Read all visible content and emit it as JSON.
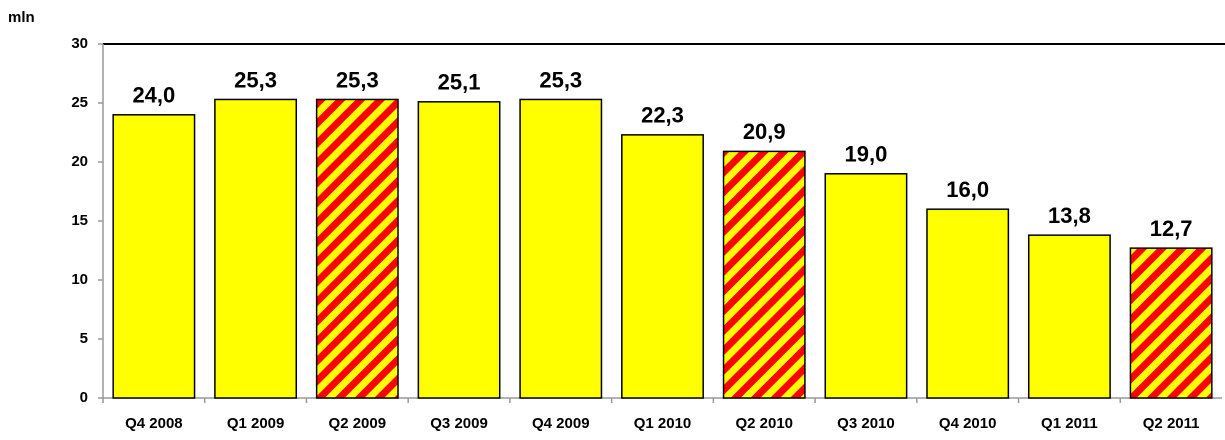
{
  "chart_data": {
    "type": "bar",
    "y_axis_label": "mln",
    "categories": [
      "Q4 2008",
      "Q1 2009",
      "Q2 2009",
      "Q3 2009",
      "Q4 2009",
      "Q1 2010",
      "Q2 2010",
      "Q3 2010",
      "Q4 2010",
      "Q1 2011",
      "Q2 2011"
    ],
    "values": [
      24.0,
      25.3,
      25.3,
      25.1,
      25.3,
      22.3,
      20.9,
      19.0,
      16.0,
      13.8,
      12.7
    ],
    "value_labels": [
      "24,0",
      "25,3",
      "25,3",
      "25,1",
      "25,3",
      "22,3",
      "20,9",
      "19,0",
      "16,0",
      "13,8",
      "12,7"
    ],
    "bar_styles": [
      "solid",
      "solid",
      "hatched",
      "solid",
      "solid",
      "solid",
      "hatched",
      "solid",
      "solid",
      "solid",
      "hatched"
    ],
    "color": "#ffff00",
    "hatch_color": "#ff0000",
    "ylim": [
      0,
      30
    ],
    "yticks": [
      0,
      5,
      10,
      15,
      20,
      25,
      30
    ],
    "grid": false
  }
}
